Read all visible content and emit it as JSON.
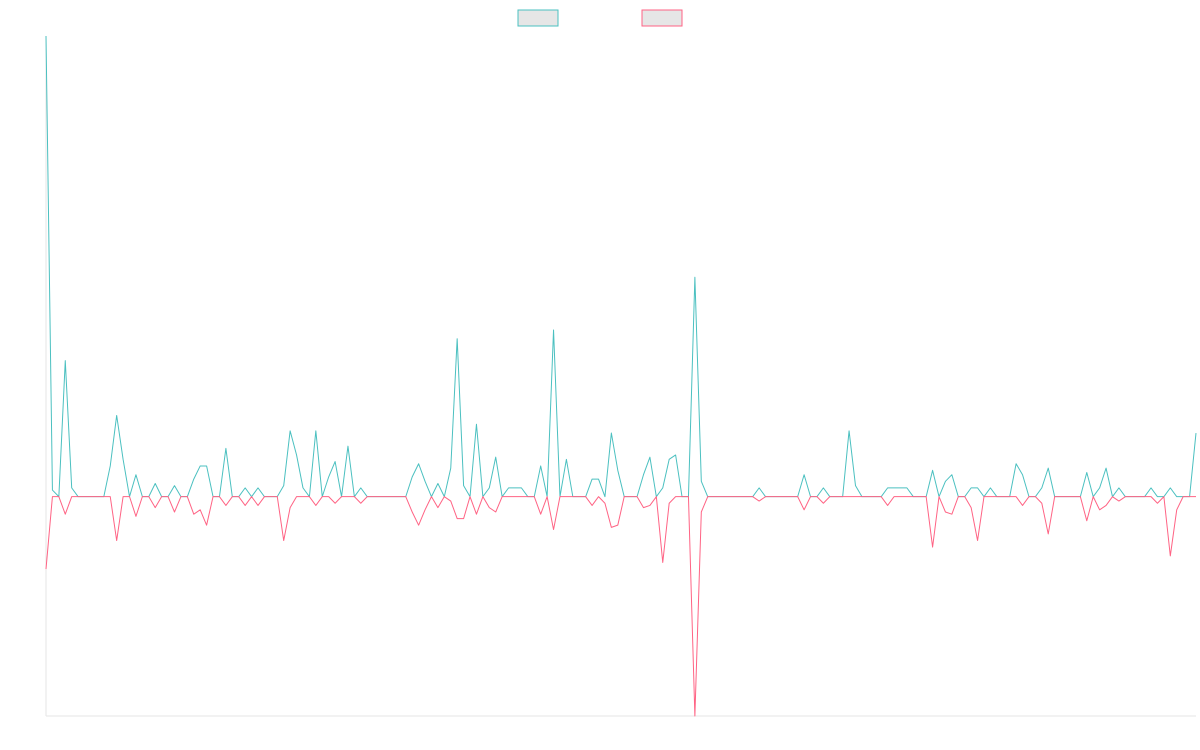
{
  "chart_data": {
    "type": "line",
    "title": "",
    "xlabel": "",
    "ylabel": "",
    "ylim": [
      -10,
      21
    ],
    "grid": false,
    "legend": {
      "position": "top-center",
      "style": "boxes-without-text"
    },
    "axes_visible": false,
    "colors": {
      "series_a": "#4bc0c0",
      "series_b": "#ff6384"
    },
    "points": 180,
    "series": [
      {
        "color": "#4bc0c0",
        "fill": "#e6e6e6",
        "spikes": [
          [
            0,
            21.0
          ],
          [
            1,
            0.3
          ],
          [
            3,
            6.2
          ],
          [
            4,
            0.4
          ],
          [
            10,
            1.4
          ],
          [
            11,
            3.7
          ],
          [
            12,
            1.7
          ],
          [
            14,
            1.0
          ],
          [
            17,
            0.6
          ],
          [
            20,
            0.5
          ],
          [
            23,
            0.8
          ],
          [
            24,
            1.4
          ],
          [
            25,
            1.4
          ],
          [
            28,
            2.2
          ],
          [
            31,
            0.4
          ],
          [
            33,
            0.4
          ],
          [
            37,
            0.5
          ],
          [
            38,
            3.0
          ],
          [
            39,
            1.9
          ],
          [
            40,
            0.4
          ],
          [
            42,
            3.0
          ],
          [
            44,
            0.9
          ],
          [
            45,
            1.6
          ],
          [
            47,
            2.3
          ],
          [
            49,
            0.4
          ],
          [
            57,
            0.9
          ],
          [
            58,
            1.5
          ],
          [
            59,
            0.7
          ],
          [
            61,
            0.6
          ],
          [
            63,
            1.3
          ],
          [
            64,
            7.2
          ],
          [
            65,
            0.5
          ],
          [
            67,
            3.3
          ],
          [
            69,
            0.4
          ],
          [
            70,
            1.8
          ],
          [
            72,
            0.4
          ],
          [
            73,
            0.4
          ],
          [
            74,
            0.4
          ],
          [
            77,
            1.4
          ],
          [
            79,
            7.6
          ],
          [
            81,
            1.7
          ],
          [
            85,
            0.8
          ],
          [
            86,
            0.8
          ],
          [
            88,
            2.9
          ],
          [
            89,
            1.2
          ],
          [
            93,
            1.0
          ],
          [
            94,
            1.8
          ],
          [
            96,
            0.4
          ],
          [
            97,
            1.7
          ],
          [
            98,
            1.9
          ],
          [
            101,
            10.0
          ],
          [
            102,
            0.7
          ],
          [
            111,
            0.4
          ],
          [
            118,
            1.0
          ],
          [
            121,
            0.4
          ],
          [
            125,
            3.0
          ],
          [
            126,
            0.5
          ],
          [
            131,
            0.4
          ],
          [
            132,
            0.4
          ],
          [
            133,
            0.4
          ],
          [
            134,
            0.4
          ],
          [
            138,
            1.2
          ],
          [
            140,
            0.7
          ],
          [
            141,
            1.0
          ],
          [
            144,
            0.4
          ],
          [
            145,
            0.4
          ],
          [
            147,
            0.4
          ],
          [
            151,
            1.5
          ],
          [
            152,
            1.0
          ],
          [
            155,
            0.4
          ],
          [
            156,
            1.3
          ],
          [
            162,
            1.1
          ],
          [
            164,
            0.4
          ],
          [
            165,
            1.3
          ],
          [
            167,
            0.4
          ],
          [
            172,
            0.4
          ],
          [
            175,
            0.4
          ],
          [
            179,
            2.9
          ]
        ]
      },
      {
        "color": "#ff6384",
        "fill": "#e6e6e6",
        "spikes": [
          [
            0,
            -3.3
          ],
          [
            3,
            -0.8
          ],
          [
            11,
            -2.0
          ],
          [
            14,
            -0.9
          ],
          [
            17,
            -0.5
          ],
          [
            20,
            -0.7
          ],
          [
            23,
            -0.8
          ],
          [
            24,
            -0.6
          ],
          [
            25,
            -1.3
          ],
          [
            28,
            -0.4
          ],
          [
            31,
            -0.4
          ],
          [
            33,
            -0.4
          ],
          [
            37,
            -2.0
          ],
          [
            38,
            -0.5
          ],
          [
            42,
            -0.4
          ],
          [
            45,
            -0.3
          ],
          [
            49,
            -0.3
          ],
          [
            57,
            -0.7
          ],
          [
            58,
            -1.3
          ],
          [
            59,
            -0.6
          ],
          [
            61,
            -0.5
          ],
          [
            63,
            -0.2
          ],
          [
            64,
            -1.0
          ],
          [
            65,
            -1.0
          ],
          [
            67,
            -0.8
          ],
          [
            69,
            -0.5
          ],
          [
            70,
            -0.7
          ],
          [
            77,
            -0.8
          ],
          [
            79,
            -1.5
          ],
          [
            85,
            -0.4
          ],
          [
            87,
            -0.3
          ],
          [
            88,
            -1.4
          ],
          [
            89,
            -1.3
          ],
          [
            93,
            -0.5
          ],
          [
            94,
            -0.4
          ],
          [
            96,
            -3.0
          ],
          [
            97,
            -0.3
          ],
          [
            101,
            -10.0
          ],
          [
            102,
            -0.7
          ],
          [
            111,
            -0.2
          ],
          [
            118,
            -0.6
          ],
          [
            121,
            -0.3
          ],
          [
            131,
            -0.4
          ],
          [
            138,
            -2.3
          ],
          [
            140,
            -0.7
          ],
          [
            141,
            -0.8
          ],
          [
            144,
            -0.5
          ],
          [
            145,
            -2.0
          ],
          [
            152,
            -0.4
          ],
          [
            155,
            -0.3
          ],
          [
            156,
            -1.7
          ],
          [
            162,
            -1.1
          ],
          [
            164,
            -0.6
          ],
          [
            165,
            -0.4
          ],
          [
            167,
            -0.2
          ],
          [
            173,
            -0.3
          ],
          [
            175,
            -2.7
          ],
          [
            176,
            -0.6
          ]
        ]
      }
    ]
  }
}
